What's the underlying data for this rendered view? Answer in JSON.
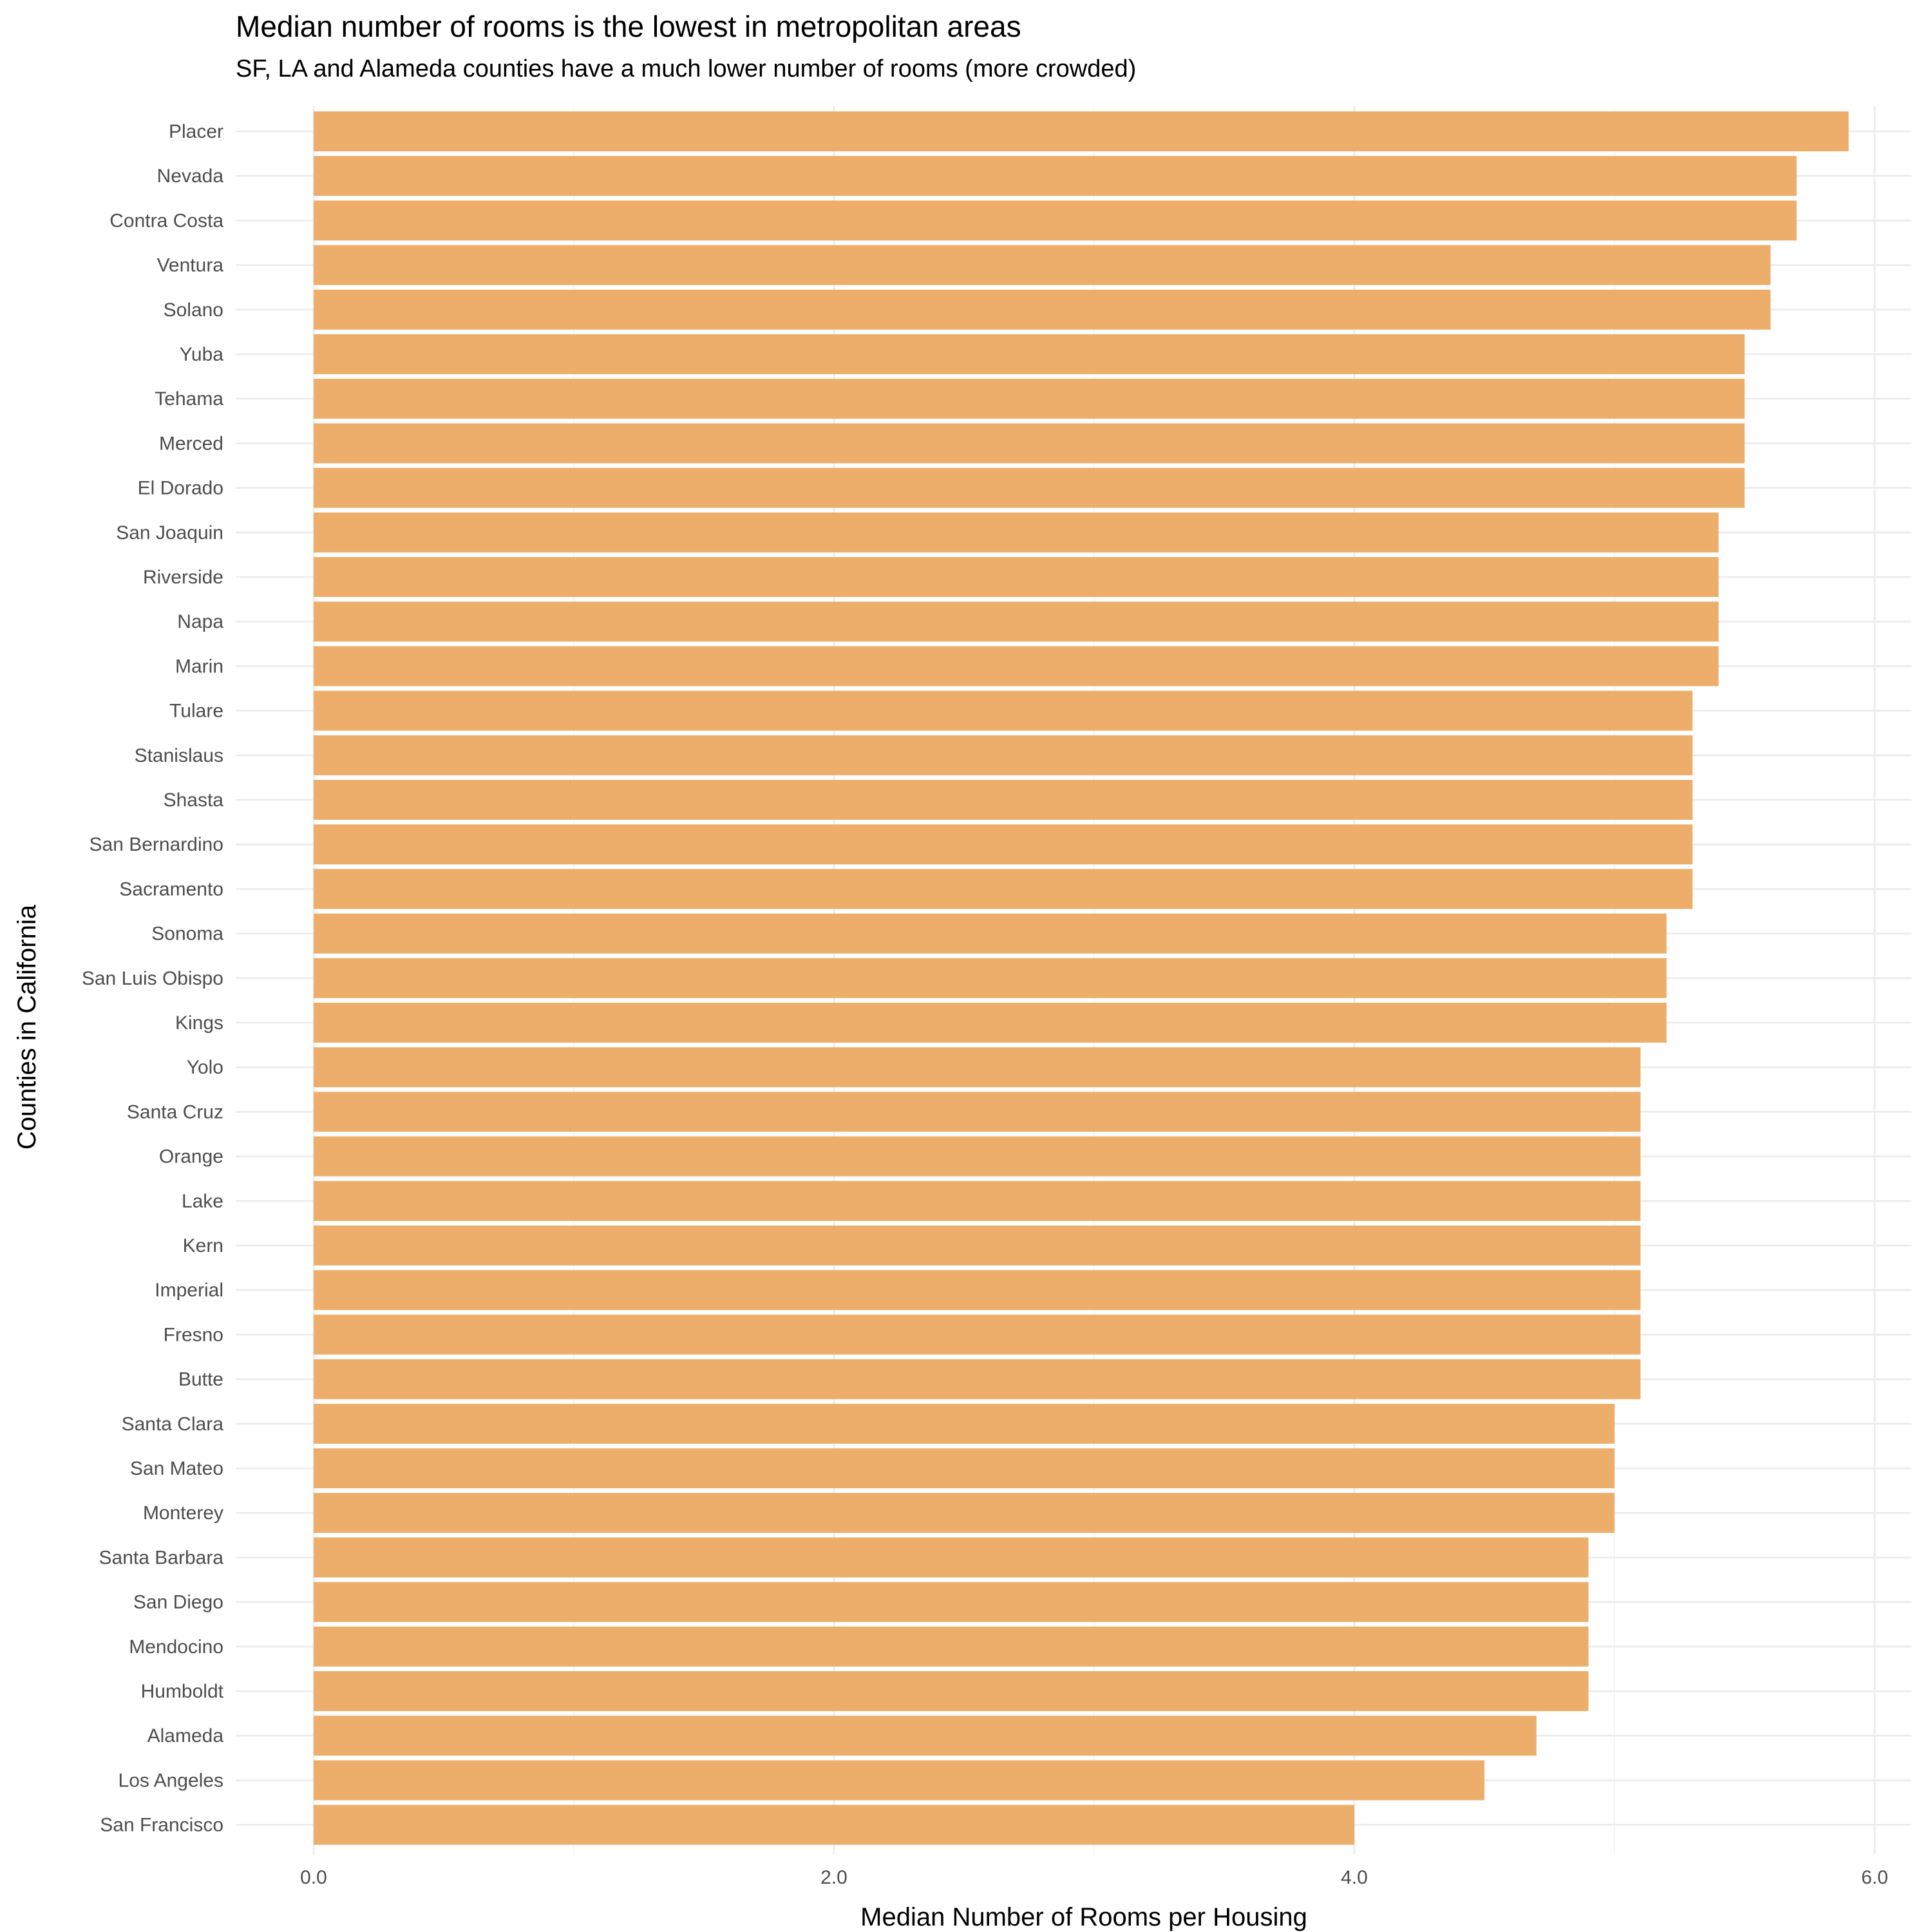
{
  "chart_data": {
    "type": "bar",
    "orientation": "horizontal",
    "title": "Median number of rooms is the lowest in metropolitan areas",
    "subtitle": "SF, LA and Alameda counties have a much lower number of rooms (more crowded)",
    "xlabel": "Median Number of Rooms per Housing",
    "ylabel": "Counties in California",
    "xlim": [
      -0.3,
      6.2
    ],
    "x_ticks": [
      0,
      2,
      4,
      6
    ],
    "x_tick_labels": [
      "0.0",
      "2.0",
      "4.0",
      "6.0"
    ],
    "grid": true,
    "bar_color": "#ECAE6A",
    "categories": [
      "Placer",
      "Nevada",
      "Contra Costa",
      "Ventura",
      "Solano",
      "Yuba",
      "Tehama",
      "Merced",
      "El Dorado",
      "San Joaquin",
      "Riverside",
      "Napa",
      "Marin",
      "Tulare",
      "Stanislaus",
      "Shasta",
      "San Bernardino",
      "Sacramento",
      "Sonoma",
      "San Luis Obispo",
      "Kings",
      "Yolo",
      "Santa Cruz",
      "Orange",
      "Lake",
      "Kern",
      "Imperial",
      "Fresno",
      "Butte",
      "Santa Clara",
      "San Mateo",
      "Monterey",
      "Santa Barbara",
      "San Diego",
      "Mendocino",
      "Humboldt",
      "Alameda",
      "Los Angeles",
      "San Francisco"
    ],
    "values": [
      5.9,
      5.7,
      5.7,
      5.6,
      5.6,
      5.5,
      5.5,
      5.5,
      5.5,
      5.4,
      5.4,
      5.4,
      5.4,
      5.3,
      5.3,
      5.3,
      5.3,
      5.3,
      5.2,
      5.2,
      5.2,
      5.1,
      5.1,
      5.1,
      5.1,
      5.1,
      5.1,
      5.1,
      5.1,
      5.0,
      5.0,
      5.0,
      4.9,
      4.9,
      4.9,
      4.9,
      4.7,
      4.5,
      4.0
    ]
  }
}
